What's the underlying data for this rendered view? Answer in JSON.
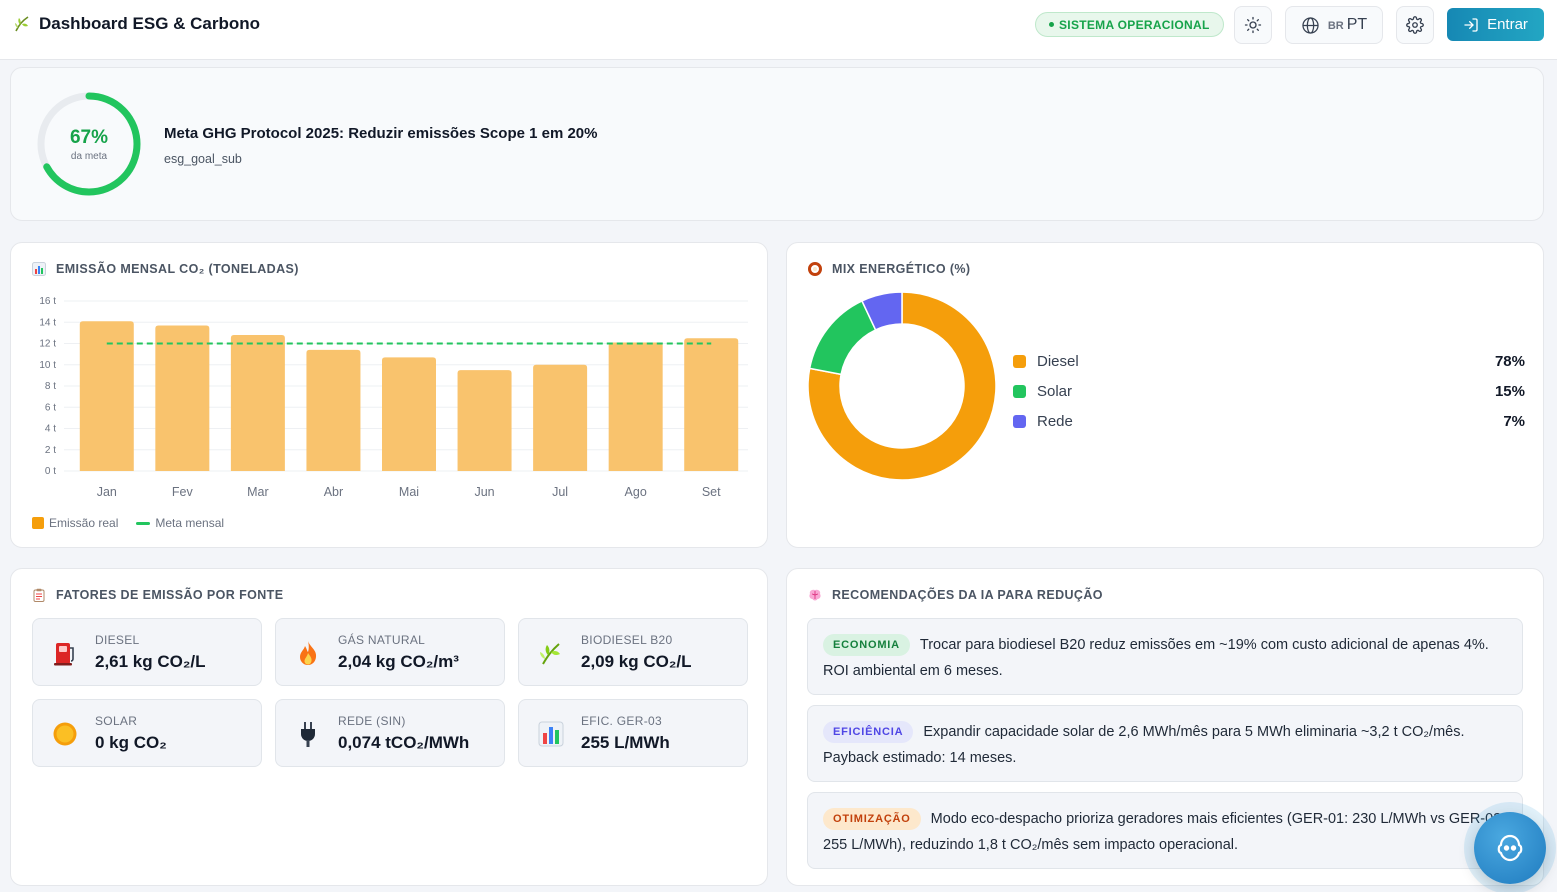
{
  "header": {
    "title": "Dashboard ESG & Carbono",
    "status": "SISTEMA OPERACIONAL",
    "lang_flag": "BR",
    "lang": "PT",
    "login": "Entrar"
  },
  "goal": {
    "percent_label": "67%",
    "percent_value": 67,
    "percent_sub": "da meta",
    "title": "Meta GHG Protocol 2025: Reduzir emissões Scope 1 em 20%",
    "subtitle": "esg_goal_sub",
    "color": "#22c55e"
  },
  "emission": {
    "title": "EMISSÃO MENSAL CO₂ (TONELADAS)",
    "legend_real": "Emissão real",
    "legend_goal": "Meta mensal"
  },
  "chart_data": {
    "type": "bar",
    "categories": [
      "Jan",
      "Fev",
      "Mar",
      "Abr",
      "Mai",
      "Jun",
      "Jul",
      "Ago",
      "Set"
    ],
    "series": [
      {
        "name": "Emissão real",
        "values": [
          14.1,
          13.7,
          12.8,
          11.4,
          10.7,
          9.5,
          10.0,
          12.1,
          12.5
        ],
        "color": "#f9c36d"
      },
      {
        "name": "Meta mensal",
        "values": [
          12,
          12,
          12,
          12,
          12,
          12,
          12,
          12,
          12
        ],
        "color": "#22c55e",
        "style": "dashed-line"
      }
    ],
    "yticks": [
      "0 t",
      "2 t",
      "4 t",
      "6 t",
      "8 t",
      "10 t",
      "12 t",
      "14 t",
      "16 t"
    ],
    "ylim": [
      0,
      16
    ],
    "grid": true,
    "legend": "bottom-left"
  },
  "mix": {
    "title": "MIX ENERGÉTICO (%)",
    "items": [
      {
        "name": "Diesel",
        "label": "78%",
        "value": 78,
        "color": "#f59e0b"
      },
      {
        "name": "Solar",
        "label": "15%",
        "value": 15,
        "color": "#22c55e"
      },
      {
        "name": "Rede",
        "label": "7%",
        "value": 7,
        "color": "#6366f1"
      }
    ]
  },
  "factors": {
    "title": "FATORES DE EMISSÃO POR FONTE",
    "items": [
      {
        "name": "DIESEL",
        "value": "2,61 kg CO₂/L",
        "icon": "fuel-pump-icon"
      },
      {
        "name": "GÁS NATURAL",
        "value": "2,04 kg CO₂/m³",
        "icon": "flame-icon"
      },
      {
        "name": "BIODIESEL B20",
        "value": "2,09 kg CO₂/L",
        "icon": "herb-icon"
      },
      {
        "name": "SOLAR",
        "value": "0 kg CO₂",
        "icon": "sun-icon"
      },
      {
        "name": "REDE (SIN)",
        "value": "0,074 tCO₂/MWh",
        "icon": "plug-icon"
      },
      {
        "name": "EFIC. GER-03",
        "value": "255 L/MWh",
        "icon": "bar-chart-icon"
      }
    ]
  },
  "reco": {
    "title": "RECOMENDAÇÕES DA IA PARA REDUÇÃO",
    "items": [
      {
        "tag": "ECONOMIA",
        "text": "Trocar para biodiesel B20 reduz emissões em ~19% com custo adicional de apenas 4%. ROI ambiental em 6 meses."
      },
      {
        "tag": "EFICIÊNCIA",
        "text": "Expandir capacidade solar de 2,6 MWh/mês para 5 MWh eliminaria ~3,2 t CO₂/mês. Payback estimado: 14 meses."
      },
      {
        "tag": "OTIMIZAÇÃO",
        "text": "Modo eco-despacho prioriza geradores mais eficientes (GER-01: 230 L/MWh vs GER-03: 255 L/MWh), reduzindo 1,8 t CO₂/mês sem impacto operacional."
      }
    ]
  }
}
